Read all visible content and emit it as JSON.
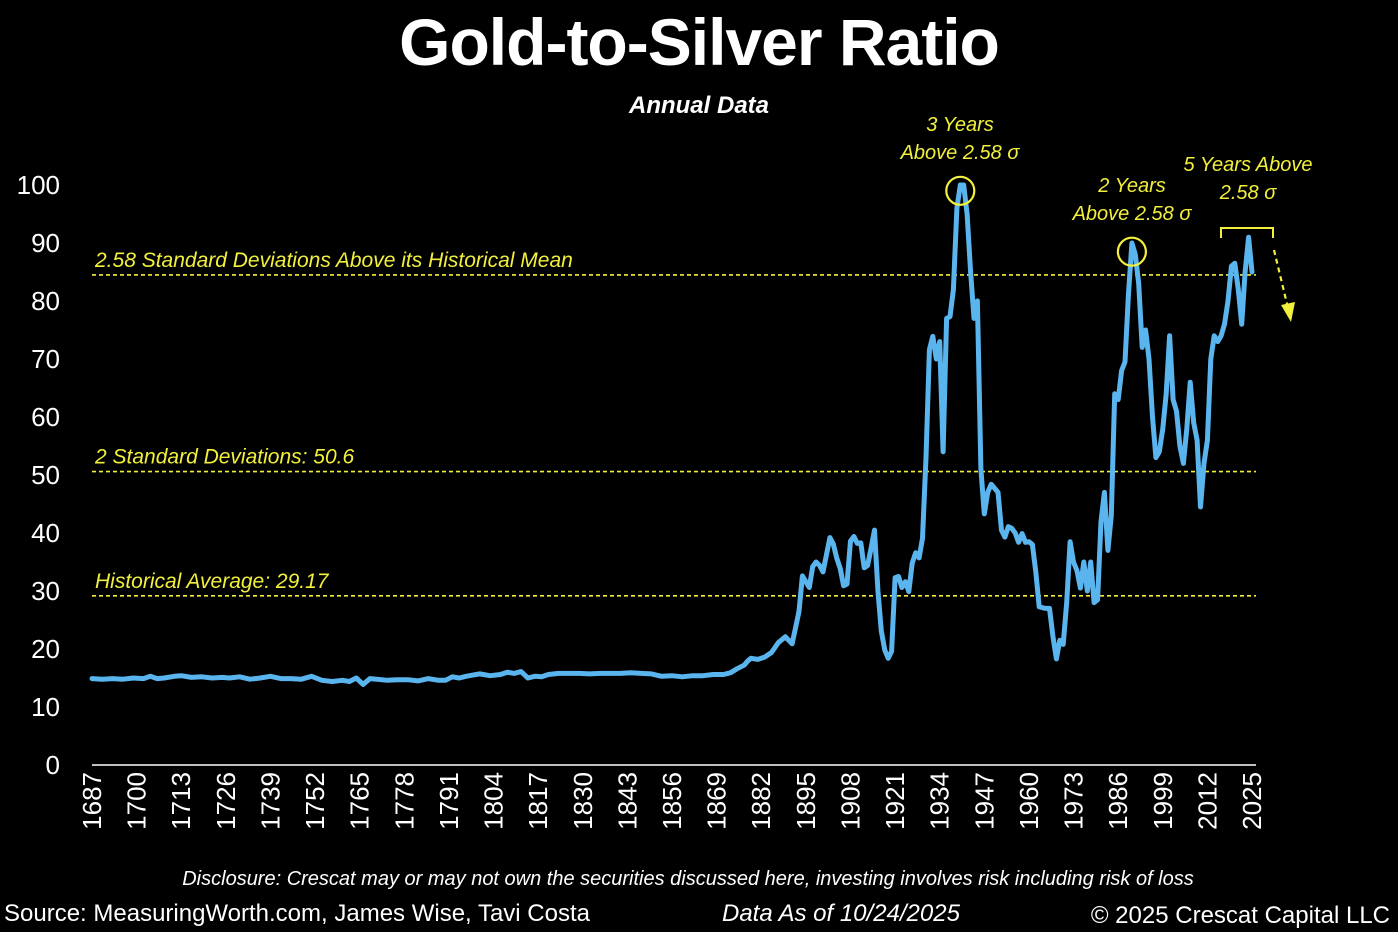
{
  "header": {
    "title": "Gold-to-Silver Ratio",
    "subtitle": "Annual Data"
  },
  "footer": {
    "disclosure": "Disclosure: Crescat may or may not own the securities discussed here, investing involves risk including risk of loss",
    "source": "Source: MeasuringWorth.com, James Wise, Tavi Costa",
    "data_as_of": "Data As of 10/24/2025",
    "copyright": "© 2025 Crescat Capital LLC"
  },
  "colors": {
    "background": "#000000",
    "series": "#5ab4ee",
    "reference": "#f2f03c",
    "axis": "#ffffff"
  },
  "chart_data": {
    "type": "line",
    "title": "Gold-to-Silver Ratio",
    "subtitle": "Annual Data",
    "xlabel": "",
    "ylabel": "",
    "xlim": [
      1687,
      2025
    ],
    "ylim": [
      0,
      100
    ],
    "grid": false,
    "y_ticks": [
      0,
      10,
      20,
      30,
      40,
      50,
      60,
      70,
      80,
      90,
      100
    ],
    "x_ticks": [
      1687,
      1700,
      1713,
      1726,
      1739,
      1752,
      1765,
      1778,
      1791,
      1804,
      1817,
      1830,
      1843,
      1856,
      1869,
      1882,
      1895,
      1908,
      1921,
      1934,
      1947,
      1960,
      1973,
      1986,
      1999,
      2012,
      2025
    ],
    "series": [
      {
        "points": [
          [
            1687,
            14.9
          ],
          [
            1690,
            14.8
          ],
          [
            1693,
            14.9
          ],
          [
            1696,
            14.8
          ],
          [
            1699,
            15.0
          ],
          [
            1702,
            14.9
          ],
          [
            1704,
            15.3
          ],
          [
            1706,
            14.9
          ],
          [
            1708,
            15.0
          ],
          [
            1711,
            15.3
          ],
          [
            1713,
            15.4
          ],
          [
            1716,
            15.1
          ],
          [
            1719,
            15.2
          ],
          [
            1722,
            15.0
          ],
          [
            1725,
            15.1
          ],
          [
            1727,
            15.0
          ],
          [
            1730,
            15.2
          ],
          [
            1733,
            14.8
          ],
          [
            1736,
            15.0
          ],
          [
            1739,
            15.3
          ],
          [
            1742,
            14.9
          ],
          [
            1745,
            14.9
          ],
          [
            1748,
            14.8
          ],
          [
            1751,
            15.3
          ],
          [
            1754,
            14.6
          ],
          [
            1757,
            14.4
          ],
          [
            1760,
            14.6
          ],
          [
            1762,
            14.4
          ],
          [
            1764,
            15.0
          ],
          [
            1766,
            13.9
          ],
          [
            1768,
            14.9
          ],
          [
            1770,
            14.8
          ],
          [
            1773,
            14.6
          ],
          [
            1776,
            14.7
          ],
          [
            1779,
            14.7
          ],
          [
            1782,
            14.5
          ],
          [
            1785,
            14.9
          ],
          [
            1788,
            14.6
          ],
          [
            1790,
            14.6
          ],
          [
            1792,
            15.2
          ],
          [
            1794,
            15.0
          ],
          [
            1796,
            15.3
          ],
          [
            1798,
            15.5
          ],
          [
            1800,
            15.7
          ],
          [
            1803,
            15.4
          ],
          [
            1806,
            15.6
          ],
          [
            1808,
            16.0
          ],
          [
            1810,
            15.8
          ],
          [
            1812,
            16.1
          ],
          [
            1814,
            15.0
          ],
          [
            1816,
            15.3
          ],
          [
            1818,
            15.2
          ],
          [
            1820,
            15.6
          ],
          [
            1823,
            15.8
          ],
          [
            1826,
            15.8
          ],
          [
            1829,
            15.8
          ],
          [
            1832,
            15.7
          ],
          [
            1835,
            15.8
          ],
          [
            1838,
            15.8
          ],
          [
            1841,
            15.8
          ],
          [
            1844,
            15.9
          ],
          [
            1847,
            15.8
          ],
          [
            1850,
            15.7
          ],
          [
            1853,
            15.3
          ],
          [
            1856,
            15.4
          ],
          [
            1859,
            15.2
          ],
          [
            1862,
            15.4
          ],
          [
            1865,
            15.4
          ],
          [
            1868,
            15.6
          ],
          [
            1871,
            15.6
          ],
          [
            1873,
            15.9
          ],
          [
            1875,
            16.6
          ],
          [
            1877,
            17.2
          ],
          [
            1878,
            17.9
          ],
          [
            1879,
            18.4
          ],
          [
            1881,
            18.2
          ],
          [
            1883,
            18.6
          ],
          [
            1885,
            19.4
          ],
          [
            1887,
            21.1
          ],
          [
            1889,
            22.1
          ],
          [
            1891,
            20.9
          ],
          [
            1892,
            23.7
          ],
          [
            1893,
            26.5
          ],
          [
            1894,
            32.6
          ],
          [
            1895,
            31.6
          ],
          [
            1896,
            30.6
          ],
          [
            1897,
            34.2
          ],
          [
            1898,
            35.0
          ],
          [
            1899,
            34.4
          ],
          [
            1900,
            33.3
          ],
          [
            1902,
            39.2
          ],
          [
            1903,
            38.1
          ],
          [
            1904,
            35.7
          ],
          [
            1905,
            33.9
          ],
          [
            1906,
            30.9
          ],
          [
            1907,
            31.2
          ],
          [
            1908,
            38.6
          ],
          [
            1909,
            39.4
          ],
          [
            1910,
            38.2
          ],
          [
            1911,
            38.3
          ],
          [
            1912,
            34.0
          ],
          [
            1913,
            34.4
          ],
          [
            1914,
            37.4
          ],
          [
            1915,
            40.5
          ],
          [
            1916,
            30.1
          ],
          [
            1917,
            23.1
          ],
          [
            1918,
            19.8
          ],
          [
            1919,
            18.4
          ],
          [
            1920,
            19.6
          ],
          [
            1921,
            32.3
          ],
          [
            1922,
            32.5
          ],
          [
            1923,
            30.6
          ],
          [
            1924,
            31.6
          ],
          [
            1925,
            29.9
          ],
          [
            1926,
            34.8
          ],
          [
            1927,
            36.6
          ],
          [
            1928,
            35.7
          ],
          [
            1929,
            39.1
          ],
          [
            1930,
            53.0
          ],
          [
            1931,
            71.6
          ],
          [
            1932,
            73.9
          ],
          [
            1933,
            70.0
          ],
          [
            1934,
            73.0
          ],
          [
            1935,
            54.0
          ],
          [
            1936,
            77.0
          ],
          [
            1937,
            77.3
          ],
          [
            1938,
            82.0
          ],
          [
            1939,
            96.0
          ],
          [
            1940,
            100.0
          ],
          [
            1941,
            100.0
          ],
          [
            1942,
            95.0
          ],
          [
            1943,
            85.0
          ],
          [
            1944,
            77.0
          ],
          [
            1945,
            80.0
          ],
          [
            1946,
            51.0
          ],
          [
            1947,
            43.3
          ],
          [
            1948,
            47.0
          ],
          [
            1949,
            48.4
          ],
          [
            1950,
            47.7
          ],
          [
            1951,
            47.0
          ],
          [
            1952,
            40.5
          ],
          [
            1953,
            39.3
          ],
          [
            1954,
            41.1
          ],
          [
            1955,
            40.8
          ],
          [
            1956,
            40.0
          ],
          [
            1957,
            38.4
          ],
          [
            1958,
            39.9
          ],
          [
            1959,
            38.4
          ],
          [
            1960,
            38.5
          ],
          [
            1961,
            38.0
          ],
          [
            1962,
            33.3
          ],
          [
            1963,
            27.3
          ],
          [
            1964,
            27.1
          ],
          [
            1965,
            27.0
          ],
          [
            1966,
            27.0
          ],
          [
            1967,
            22.2
          ],
          [
            1968,
            18.3
          ],
          [
            1969,
            21.5
          ],
          [
            1970,
            20.8
          ],
          [
            1971,
            28.0
          ],
          [
            1972,
            38.5
          ],
          [
            1973,
            35.0
          ],
          [
            1974,
            33.5
          ],
          [
            1975,
            30.5
          ],
          [
            1976,
            35.0
          ],
          [
            1977,
            30.0
          ],
          [
            1978,
            35.0
          ],
          [
            1979,
            28.0
          ],
          [
            1980,
            28.5
          ],
          [
            1981,
            42.0
          ],
          [
            1982,
            47.0
          ],
          [
            1983,
            37.0
          ],
          [
            1984,
            43.0
          ],
          [
            1985,
            64.0
          ],
          [
            1986,
            63.0
          ],
          [
            1987,
            68.0
          ],
          [
            1988,
            69.5
          ],
          [
            1989,
            81.0
          ],
          [
            1990,
            90.0
          ],
          [
            1991,
            88.0
          ],
          [
            1992,
            83.0
          ],
          [
            1993,
            72.0
          ],
          [
            1994,
            75.0
          ],
          [
            1995,
            70.0
          ],
          [
            1996,
            60.0
          ],
          [
            1997,
            53.0
          ],
          [
            1998,
            54.0
          ],
          [
            1999,
            58.0
          ],
          [
            2000,
            64.0
          ],
          [
            2001,
            74.0
          ],
          [
            2002,
            63.0
          ],
          [
            2003,
            61.0
          ],
          [
            2004,
            55.0
          ],
          [
            2005,
            52.0
          ],
          [
            2006,
            58.0
          ],
          [
            2007,
            66.0
          ],
          [
            2008,
            59.0
          ],
          [
            2009,
            56.0
          ],
          [
            2010,
            44.5
          ],
          [
            2011,
            52.0
          ],
          [
            2012,
            56.0
          ],
          [
            2013,
            70.0
          ],
          [
            2014,
            74.0
          ],
          [
            2015,
            73.0
          ],
          [
            2016,
            74.0
          ],
          [
            2017,
            76.0
          ],
          [
            2018,
            80.0
          ],
          [
            2019,
            86.0
          ],
          [
            2020,
            86.5
          ],
          [
            2021,
            82.0
          ],
          [
            2022,
            76.0
          ],
          [
            2023,
            85.0
          ],
          [
            2024,
            91.0
          ],
          [
            2025,
            85.0
          ]
        ]
      }
    ],
    "reference_lines": [
      {
        "label": "2.58 Standard Deviations Above its Historical Mean",
        "value": 84.5
      },
      {
        "label": "2 Standard Deviations: 50.6",
        "value": 50.6
      },
      {
        "label": "Historical Average: 29.17",
        "value": 29.17
      }
    ],
    "annotations": [
      {
        "line1": "3 Years",
        "line2": "Above 2.58 σ",
        "year": 1940,
        "value": 99
      },
      {
        "line1": "2 Years",
        "line2": "Above 2.58 σ",
        "year": 1990,
        "value": 88.5
      },
      {
        "line1": "5 Years Above",
        "line2": "2.58 σ"
      }
    ]
  }
}
